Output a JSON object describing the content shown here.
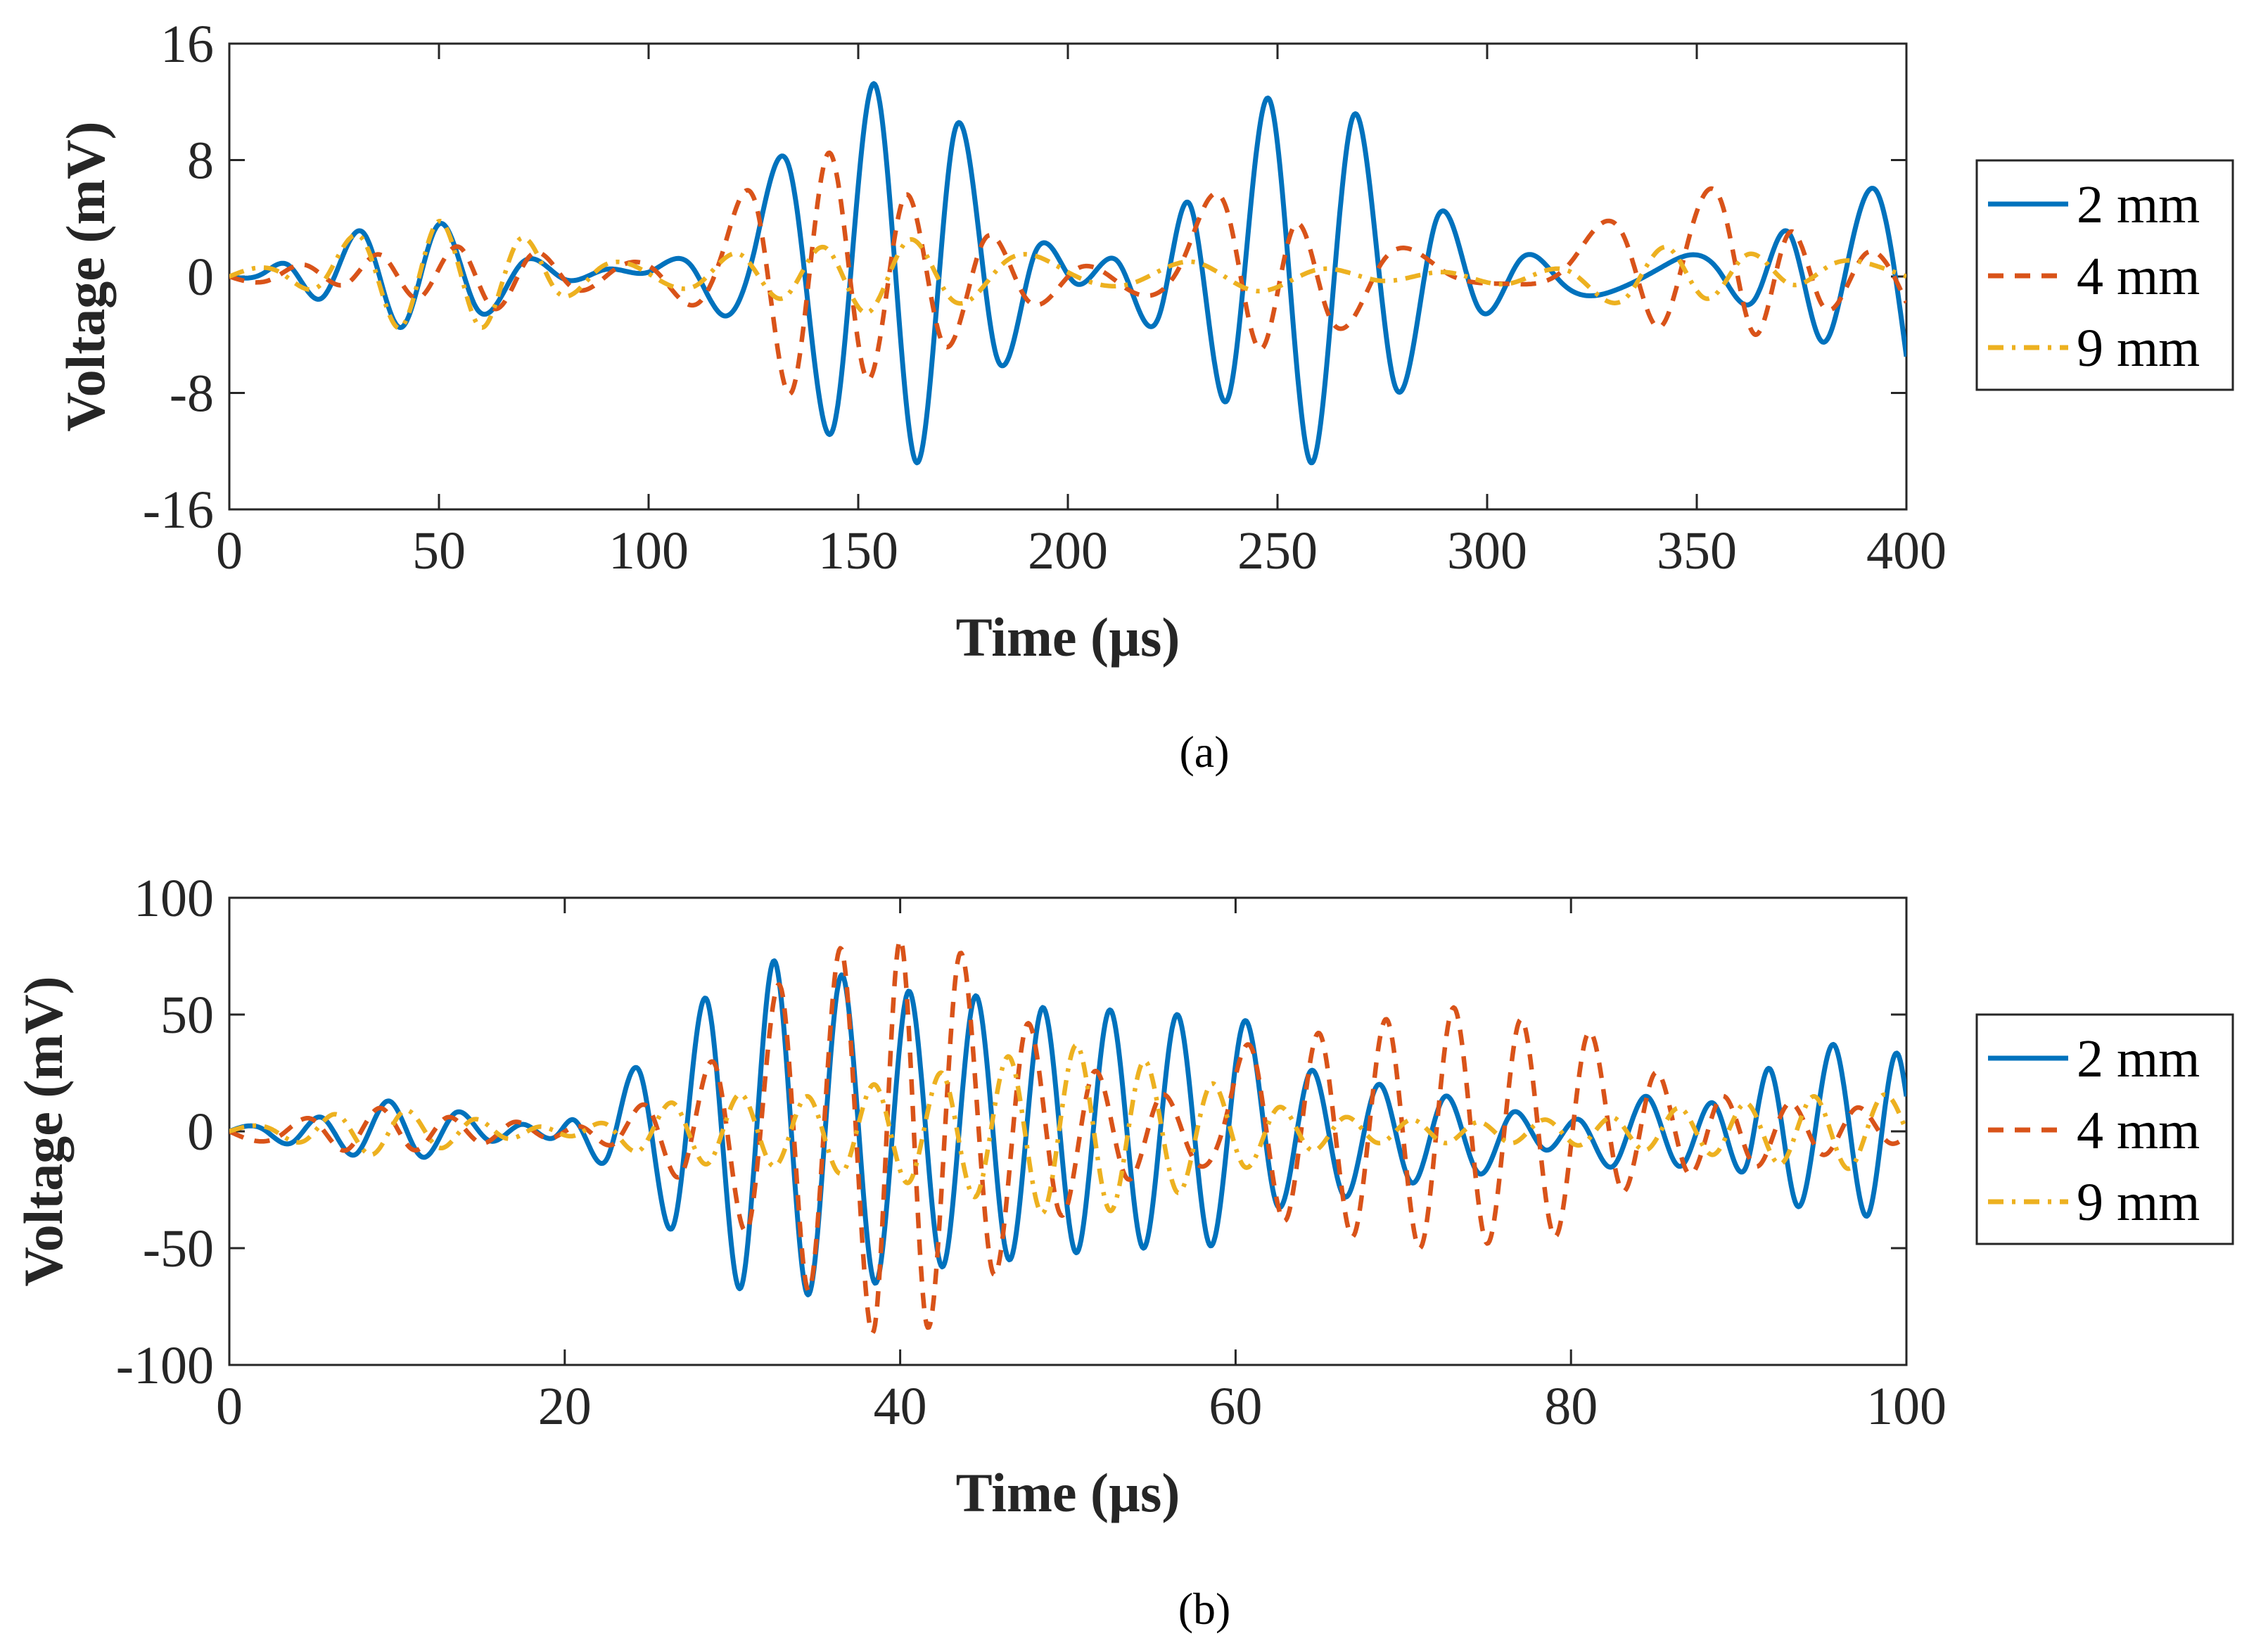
{
  "figure": {
    "panels": [
      {
        "caption": "(a)",
        "caption_letter": "a"
      },
      {
        "caption": "(b)",
        "caption_letter": "b"
      }
    ]
  },
  "chart_data": [
    {
      "type": "line",
      "panel": "a",
      "title": "",
      "xlabel": "Time (µs)",
      "ylabel": "Voltage (mV)",
      "xlim": [
        0,
        400
      ],
      "ylim": [
        -16,
        16
      ],
      "x_ticks": [
        0,
        50,
        100,
        150,
        200,
        250,
        300,
        350,
        400
      ],
      "y_ticks": [
        16,
        8,
        0,
        -8,
        -16
      ],
      "x_tick_labels": [
        "0",
        "50",
        "100",
        "150",
        "200",
        "250",
        "300",
        "350",
        "400"
      ],
      "y_tick_labels": [
        "16",
        "8",
        "0",
        "-8",
        "-16"
      ],
      "grid": false,
      "legend_position": "outside-right",
      "series": [
        {
          "name": "2 mm",
          "color": "#0072BD",
          "style": "solid",
          "x": [
            0,
            8,
            14,
            22,
            32,
            41,
            50,
            59,
            70,
            80,
            90,
            100,
            110,
            118,
            125,
            134,
            144,
            154,
            164,
            173,
            183,
            192,
            202,
            212,
            222,
            229,
            238,
            248,
            258,
            268,
            278,
            288,
            298,
            308,
            318,
            330,
            342,
            355,
            364,
            372,
            380,
            386,
            393,
            400
          ],
          "y": [
            0,
            0.2,
            0.8,
            -1.5,
            3,
            -3.5,
            3.6,
            -2.2,
            1,
            -0.2,
            0.5,
            0.3,
            0.8,
            -2.7,
            1.5,
            7,
            -10.5,
            13.2,
            -12.8,
            10,
            -5.5,
            1.5,
            -0.5,
            1,
            -2.5,
            5,
            -8.5,
            12.2,
            -12.8,
            11,
            -7.5,
            4,
            -2.2,
            1.2,
            -0.5,
            -1,
            0.7,
            0.5,
            -1.5,
            3,
            -4.5,
            1,
            5.8,
            -5.5
          ]
        },
        {
          "name": "4 mm",
          "color": "#D95319",
          "style": "dashed",
          "x": [
            0,
            10,
            18,
            28,
            36,
            45,
            55,
            63,
            72,
            82,
            92,
            102,
            112,
            118,
            126,
            134,
            143,
            152,
            161,
            170,
            180,
            190,
            202,
            215,
            228,
            238,
            246,
            254,
            262,
            275,
            290,
            305,
            320,
            333,
            341,
            348,
            356,
            364,
            372,
            380,
            390,
            400
          ],
          "y": [
            0,
            -0.2,
            0.8,
            -0.5,
            1.5,
            -1.5,
            2,
            -2.2,
            1.5,
            -0.8,
            0.5,
            0.3,
            -1.8,
            2,
            4.5,
            -8,
            8.5,
            -7,
            5.5,
            -4.5,
            2.5,
            -1.5,
            0.5,
            -1,
            1.5,
            4.5,
            -5,
            3.5,
            -2.5,
            1,
            0.3,
            -0.5,
            1,
            2.5,
            -3.5,
            2.5,
            5,
            -4,
            3,
            -2,
            1.5,
            -1.8
          ]
        },
        {
          "name": "9 mm",
          "color": "#EDB120",
          "style": "dashdot",
          "x": [
            0,
            12,
            22,
            32,
            41,
            50,
            60,
            69,
            78,
            88,
            100,
            112,
            122,
            132,
            142,
            152,
            162,
            172,
            185,
            200,
            215,
            230,
            245,
            260,
            275,
            290,
            305,
            320,
            333,
            343,
            352,
            362,
            372,
            382,
            392,
            400
          ],
          "y": [
            0,
            0.3,
            -0.5,
            2.5,
            -3.5,
            3.8,
            -3.5,
            2.5,
            -1,
            0.5,
            0.2,
            -0.5,
            1.5,
            -1.5,
            2,
            -2.5,
            2.5,
            -1.5,
            1,
            0.3,
            -0.5,
            1,
            -1,
            0.5,
            -0.3,
            0.3,
            -0.5,
            0.3,
            -1.5,
            2,
            -1.5,
            1.5,
            -0.5,
            0.8,
            0.8,
            0
          ]
        }
      ]
    },
    {
      "type": "line",
      "panel": "b",
      "title": "",
      "xlabel": "Time (µs)",
      "ylabel": "Voltage (mV)",
      "xlim": [
        0,
        100
      ],
      "ylim": [
        -100,
        100
      ],
      "x_ticks": [
        0,
        20,
        40,
        60,
        80,
        100
      ],
      "y_ticks": [
        100,
        50,
        0,
        -50,
        -100
      ],
      "x_tick_labels": [
        "0",
        "20",
        "40",
        "60",
        "80",
        "100"
      ],
      "y_tick_labels": [
        "100",
        "50",
        "0",
        "-50",
        "-100"
      ],
      "grid": false,
      "legend_position": "outside-right",
      "series": [
        {
          "name": "2 mm",
          "color": "#0072BD",
          "style": "solid",
          "x": [
            0,
            2,
            3.7,
            5.5,
            7.5,
            9.5,
            11.5,
            13.5,
            15.5,
            17.5,
            19.5,
            20.5,
            22.5,
            24.5,
            26.5,
            28.5,
            30.5,
            32.5,
            34.5,
            36.5,
            38.5,
            40.5,
            42.5,
            44.5,
            46.5,
            48.5,
            50.5,
            52.5,
            54.5,
            56.5,
            58.5,
            60.5,
            62.5,
            64.5,
            66.5,
            68.5,
            70.5,
            72.5,
            74.5,
            76.5,
            78.5,
            80.5,
            82.5,
            84.5,
            86.5,
            88.5,
            90.5,
            91.8,
            93.5,
            95.7,
            97.7,
            99.5,
            100
          ],
          "y": [
            0,
            1,
            -5,
            6,
            -10,
            13,
            -11,
            8,
            -4,
            3,
            -2,
            5,
            -12,
            25,
            -40,
            56,
            -67,
            73,
            -70,
            67,
            -65,
            60,
            -58,
            58,
            -55,
            53,
            -52,
            52,
            -50,
            50,
            -49,
            47,
            -32,
            26,
            -28,
            20,
            -22,
            15,
            -18,
            8,
            -8,
            5,
            -15,
            15,
            -15,
            12,
            -14,
            27,
            -32,
            37,
            -36,
            33,
            15
          ]
        },
        {
          "name": "4 mm",
          "color": "#D95319",
          "style": "dashed",
          "x": [
            0,
            3,
            5,
            7,
            9,
            11,
            13,
            15,
            17,
            19,
            21,
            23,
            25,
            27,
            29,
            31,
            33,
            34.5,
            36.5,
            38.5,
            40,
            41.5,
            43.5,
            45.5,
            47.5,
            49.5,
            51.5,
            53.5,
            55.5,
            57.5,
            59.5,
            61,
            63,
            65,
            67,
            69,
            71,
            73,
            75,
            77,
            79,
            81,
            83,
            85,
            87,
            89,
            91,
            93,
            95,
            97,
            99,
            100
          ],
          "y": [
            0,
            -2,
            5,
            -8,
            10,
            -8,
            6,
            -5,
            4,
            -3,
            2,
            -5,
            10,
            -18,
            28,
            -40,
            58,
            -68,
            78,
            -83,
            82,
            -80,
            75,
            -60,
            45,
            -35,
            25,
            -20,
            15,
            -12,
            8,
            35,
            -38,
            42,
            -45,
            48,
            -50,
            53,
            -48,
            48,
            -45,
            42,
            -25,
            25,
            -18,
            15,
            -15,
            12,
            -10,
            10,
            -5,
            -2
          ]
        },
        {
          "name": "9 mm",
          "color": "#EDB120",
          "style": "dashdot",
          "x": [
            0,
            2.5,
            4.5,
            6.5,
            8.5,
            10.5,
            12.5,
            14.5,
            16.5,
            18.5,
            20.5,
            22.5,
            24.5,
            26.5,
            28.5,
            30.5,
            32.5,
            34.5,
            36.5,
            38.5,
            40.5,
            42.5,
            44.5,
            46.5,
            48.5,
            50.5,
            52.5,
            54.5,
            56.5,
            58.5,
            60.5,
            62.5,
            64.5,
            66.5,
            68.5,
            70.5,
            72.5,
            74.5,
            76.5,
            78.5,
            80.5,
            82.5,
            84.5,
            86.5,
            88.5,
            90.5,
            92.5,
            94.5,
            96.5,
            98.5,
            100
          ],
          "y": [
            0,
            1,
            -4,
            7,
            -10,
            9,
            -7,
            5,
            -3,
            2,
            -2,
            3,
            -8,
            12,
            -14,
            16,
            -15,
            15,
            -18,
            20,
            -22,
            25,
            -28,
            32,
            -35,
            37,
            -34,
            30,
            -26,
            20,
            -15,
            10,
            -8,
            6,
            -5,
            5,
            -5,
            4,
            -5,
            5,
            -6,
            6,
            -8,
            10,
            -10,
            12,
            -14,
            15,
            -16,
            15,
            0
          ]
        }
      ]
    }
  ]
}
